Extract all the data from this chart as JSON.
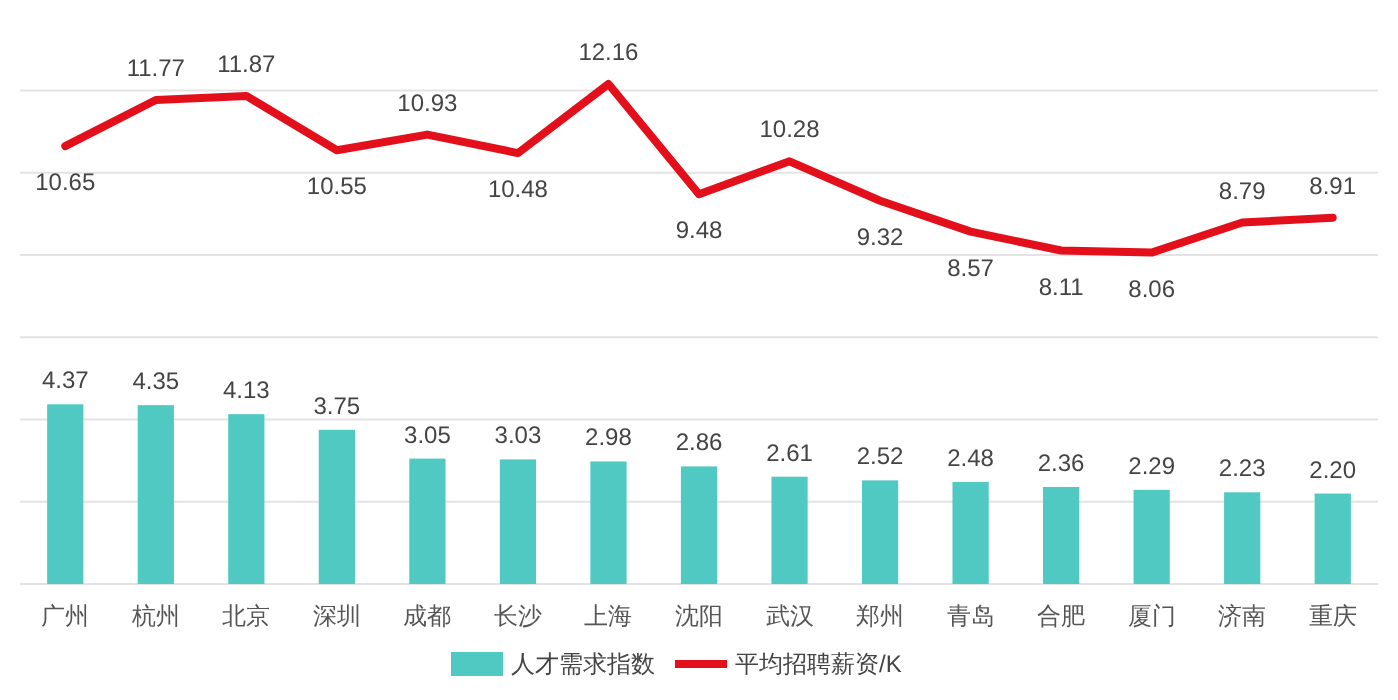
{
  "chart_data": {
    "type": "bar",
    "categories": [
      "广州",
      "杭州",
      "北京",
      "深圳",
      "成都",
      "长沙",
      "上海",
      "沈阳",
      "武汉",
      "郑州",
      "青岛",
      "合肥",
      "厦门",
      "济南",
      "重庆"
    ],
    "series": [
      {
        "name": "人才需求指数",
        "color": "#4fc9c1",
        "values": [
          4.37,
          4.35,
          4.13,
          3.75,
          3.05,
          3.03,
          2.98,
          2.86,
          2.61,
          2.52,
          2.48,
          2.36,
          2.29,
          2.23,
          2.2
        ],
        "value_labels": [
          "4.37",
          "4.35",
          "4.13",
          "3.75",
          "3.05",
          "3.03",
          "2.98",
          "2.86",
          "2.61",
          "2.52",
          "2.48",
          "2.36",
          "2.29",
          "2.23",
          "2.20"
        ]
      },
      {
        "name": "平均招聘薪资/K",
        "type": "line",
        "color": "#e3101b",
        "values": [
          10.65,
          11.77,
          11.87,
          10.55,
          10.93,
          10.48,
          12.16,
          9.48,
          10.28,
          9.32,
          8.57,
          8.11,
          8.06,
          8.79,
          8.91
        ],
        "value_labels": [
          "10.65",
          "11.77",
          "11.87",
          "10.55",
          "10.93",
          "10.48",
          "12.16",
          "9.48",
          "10.28",
          "9.32",
          "8.57",
          "8.11",
          "8.06",
          "8.79",
          "8.91"
        ]
      }
    ],
    "yticks": [
      {
        "value": 0,
        "label": null
      },
      {
        "value": 2,
        "label": null
      },
      {
        "value": 4,
        "label": null
      },
      {
        "value": 6,
        "label": null
      },
      {
        "value": 8,
        "label": null
      },
      {
        "value": 10,
        "label": null
      },
      {
        "value": 12,
        "label": null
      }
    ],
    "tick_labels": "x",
    "grid": "y",
    "legend": "bottom",
    "marker": "none",
    "line_style": "solid"
  }
}
